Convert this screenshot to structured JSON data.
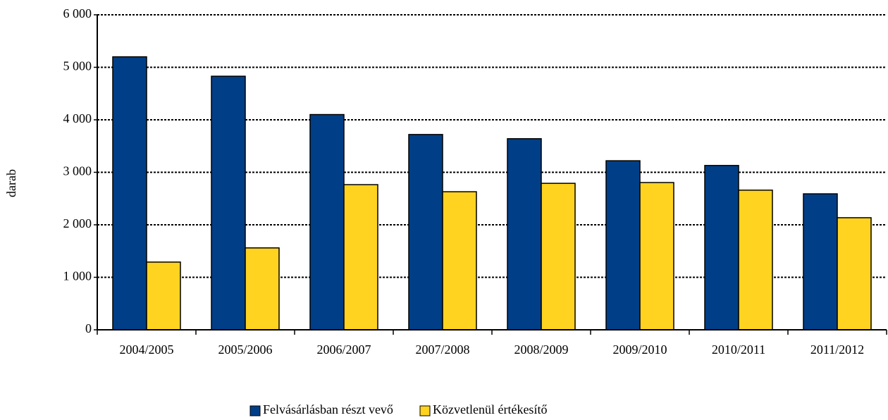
{
  "chart_data": {
    "type": "bar",
    "ylabel": "darab",
    "categories": [
      "2004/2005",
      "2005/2006",
      "2006/2007",
      "2007/2008",
      "2008/2009",
      "2009/2010",
      "2010/2011",
      "2011/2012"
    ],
    "series": [
      {
        "name": "Felvásárlásban részt vevő",
        "color": "#003f87",
        "values": [
          5200,
          4830,
          4100,
          3720,
          3640,
          3220,
          3130,
          2590
        ]
      },
      {
        "name": "Közvetlenül értékesítő",
        "color": "#ffd320",
        "values": [
          1290,
          1560,
          2765,
          2630,
          2790,
          2805,
          2660,
          2135
        ]
      }
    ],
    "ylim": [
      0,
      6000
    ],
    "yticks": [
      0,
      {
        "value": 1000,
        "label": "1 000"
      },
      {
        "value": 2000,
        "label": "2 000"
      },
      {
        "value": 3000,
        "label": "3 000"
      },
      {
        "value": 4000,
        "label": "4 000"
      },
      {
        "value": 5000,
        "label": "5 000"
      },
      {
        "value": 6000,
        "label": "6 000"
      }
    ],
    "grid": true,
    "legend": "bottom"
  }
}
